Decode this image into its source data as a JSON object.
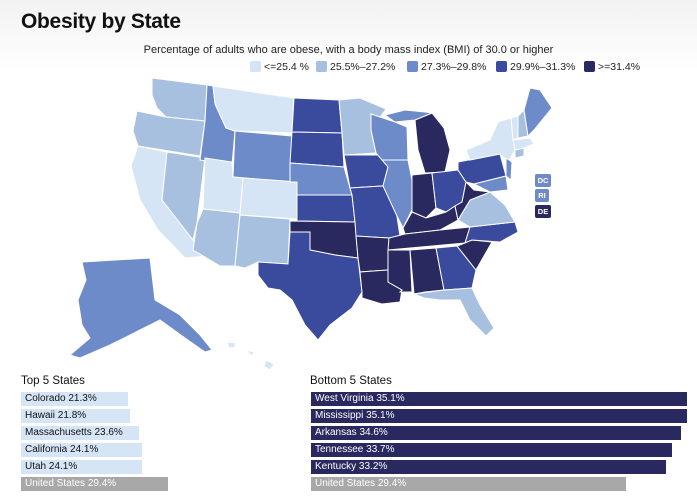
{
  "title": "Obesity by State",
  "subtitle": "Percentage of adults who are obese, with a body mass index (BMI) of 30.0 or higher",
  "colors": {
    "c0": "#d6e5f5",
    "c1": "#a8c0e0",
    "c2": "#6d8bc8",
    "c3": "#3a4b9e",
    "c4": "#29295f",
    "us": "#a8a8a8"
  },
  "legend": [
    {
      "label": "<=25.4 %",
      "color": "#d6e5f5"
    },
    {
      "label": "25.5%–27.2%",
      "color": "#a8c0e0"
    },
    {
      "label": "27.3%–29.8%",
      "color": "#6d8bc8"
    },
    {
      "label": "29.9%–31.3%",
      "color": "#3a4b9e"
    },
    {
      "label": ">=31.4%",
      "color": "#29295f"
    }
  ],
  "small_state_tags": [
    "DC",
    "RI",
    "DE"
  ],
  "top5": {
    "heading": "Top 5 States",
    "items": [
      {
        "label": "Colorado 21.3%",
        "value": 21.3
      },
      {
        "label": "Hawaii 21.8%",
        "value": 21.8
      },
      {
        "label": "Massachusetts 23.6%",
        "value": 23.6
      },
      {
        "label": "California 24.1%",
        "value": 24.1
      },
      {
        "label": "Utah 24.1%",
        "value": 24.1
      }
    ],
    "us": {
      "label": "United States 29.4%",
      "value": 29.4
    }
  },
  "bottom5": {
    "heading": "Bottom 5 States",
    "items": [
      {
        "label": "West Virginia 35.1%",
        "value": 35.1
      },
      {
        "label": "Mississippi 35.1%",
        "value": 35.1
      },
      {
        "label": "Arkansas 34.6%",
        "value": 34.6
      },
      {
        "label": "Tennessee 33.7%",
        "value": 33.7
      },
      {
        "label": "Kentucky 33.2%",
        "value": 33.2
      }
    ],
    "us": {
      "label": "United States 29.4%",
      "value": 29.4
    }
  }
}
